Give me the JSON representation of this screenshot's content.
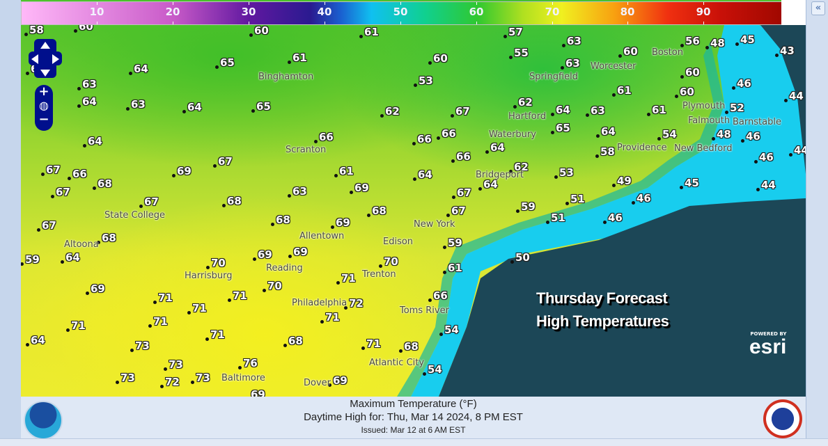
{
  "legend": {
    "ticks": [
      "10",
      "20",
      "30",
      "40",
      "50",
      "60",
      "70",
      "80",
      "90"
    ]
  },
  "panel": {
    "collapse_label": "«"
  },
  "map_colors": {
    "ocean": "#1c4757",
    "near_shore": "#1cd0f0",
    "cool_land": "#4cc22c",
    "warm_land": "#ecec30"
  },
  "stations": [
    "58",
    "60",
    "60",
    "61",
    "57",
    "63",
    "56",
    "48",
    "45",
    "43",
    "64",
    "65",
    "61",
    "60",
    "55",
    "60",
    "63",
    "60",
    "46",
    "6",
    "63",
    "64",
    "63",
    "64",
    "65",
    "53",
    "62",
    "67",
    "62",
    "64",
    "63",
    "61",
    "61",
    "60",
    "52",
    "44",
    "64",
    "66",
    "66",
    "66",
    "65",
    "64",
    "54",
    "48",
    "46",
    "44",
    "67",
    "66",
    "69",
    "67",
    "61",
    "66",
    "64",
    "58",
    "62",
    "53",
    "46",
    "67",
    "68",
    "63",
    "69",
    "64",
    "67",
    "64",
    "49",
    "45",
    "44",
    "67",
    "68",
    "68",
    "67",
    "59",
    "51",
    "46",
    "67",
    "68",
    "69",
    "51",
    "46",
    "68",
    "59",
    "69",
    "69",
    "59",
    "64",
    "70",
    "61",
    "50",
    "70",
    "70",
    "69",
    "71",
    "71",
    "71",
    "72",
    "66",
    "71",
    "71",
    "71",
    "71",
    "54",
    "71",
    "64",
    "73",
    "68",
    "71",
    "68",
    "73",
    "76",
    "54",
    "73",
    "72",
    "73",
    "69",
    "69"
  ],
  "cities": [
    "Binghamton",
    "Scranton",
    "Springfield",
    "Worcester",
    "Boston",
    "Hartford",
    "Providence",
    "Plymouth",
    "Barnstable",
    "New Bedford",
    "Falmouth",
    "Waterbury",
    "Bridgeport",
    "State College",
    "Altoona",
    "Allentown",
    "New York",
    "Edison",
    "Reading",
    "Harrisburg",
    "Trenton",
    "Philadelphia",
    "Toms River",
    "Atlantic City",
    "Baltimore",
    "Dover"
  ],
  "overlay": {
    "line1": "Thursday Forecast",
    "line2": "High Temperatures"
  },
  "esri": {
    "powered": "POWERED BY",
    "logo": "esri"
  },
  "caption": {
    "title": "Maximum Temperature (°F)",
    "valid": "Daytime High for: Thu, Mar 14 2024,   8 PM EST",
    "issued": "Issued: Mar 12 at 6 AM EST"
  },
  "logos": {
    "left": "NOAA",
    "right": "National Weather Service"
  }
}
